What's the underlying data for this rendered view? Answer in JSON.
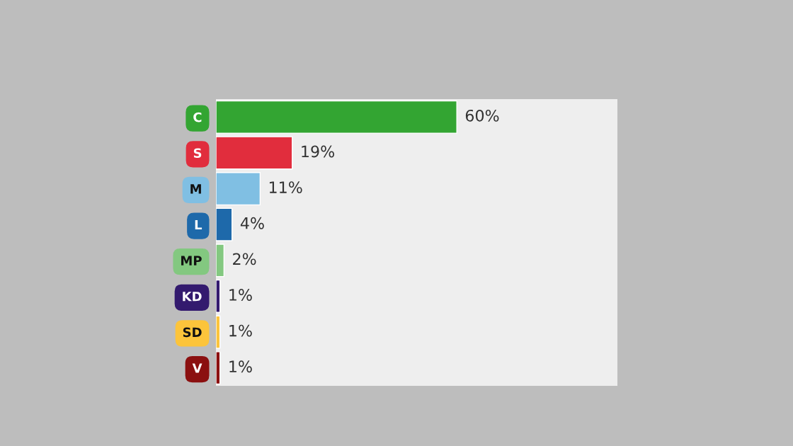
{
  "chart_data": {
    "type": "bar",
    "orientation": "horizontal",
    "categories": [
      "C",
      "S",
      "M",
      "L",
      "MP",
      "KD",
      "SD",
      "V"
    ],
    "values": [
      60,
      19,
      11,
      4,
      2,
      1,
      1,
      1
    ],
    "colors": [
      "#33a532",
      "#e12d3d",
      "#80bfe3",
      "#1e69aa",
      "#83c880",
      "#331a6e",
      "#fcc43b",
      "#8b1010"
    ],
    "value_labels": [
      "60%",
      "19%",
      "11%",
      "4%",
      "2%",
      "1%",
      "1%",
      "1%"
    ],
    "xlim": [
      0,
      100
    ],
    "tick_labels": "y",
    "grid": false,
    "legend": false
  }
}
